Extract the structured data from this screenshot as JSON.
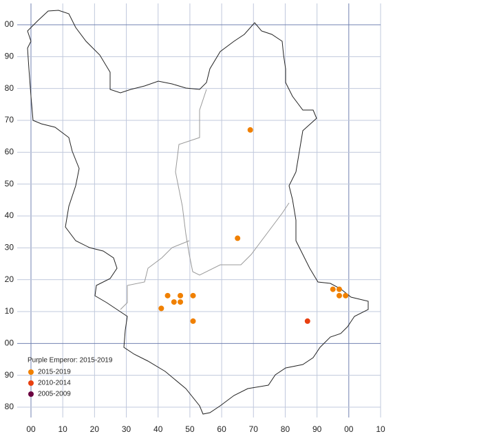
{
  "chart_data": {
    "type": "scatter",
    "legend_title": "Purple Emperor:  2015-2019",
    "xlim": [
      0,
      110
    ],
    "xticks": [
      {
        "value": 0,
        "label": "00"
      },
      10,
      20,
      30,
      40,
      50,
      60,
      70,
      80,
      90,
      {
        "value": 100,
        "label": "00"
      },
      {
        "value": 110,
        "label": "10"
      }
    ],
    "ylim": [
      -20,
      100
    ],
    "yticks": [
      {
        "value": 100,
        "label": "00"
      },
      90,
      80,
      70,
      60,
      50,
      40,
      30,
      20,
      10,
      {
        "value": 0,
        "label": "00"
      },
      {
        "value": -10,
        "label": "90"
      },
      {
        "value": -20,
        "label": "80"
      }
    ],
    "grid": true,
    "series": [
      {
        "name": "2015-2019",
        "color": "#f08000",
        "x": [
          69,
          65,
          43,
          47,
          51,
          45,
          47,
          41,
          51,
          95,
          97,
          97,
          99
        ],
        "y": [
          67,
          33,
          15,
          15,
          15,
          13,
          13,
          11,
          7,
          17,
          17,
          15,
          15
        ]
      },
      {
        "name": "2010-2014",
        "color": "#e84010",
        "x": [
          87
        ],
        "y": [
          7
        ]
      },
      {
        "name": "2005-2009",
        "color": "#6a0040",
        "x": [],
        "y": []
      }
    ]
  }
}
